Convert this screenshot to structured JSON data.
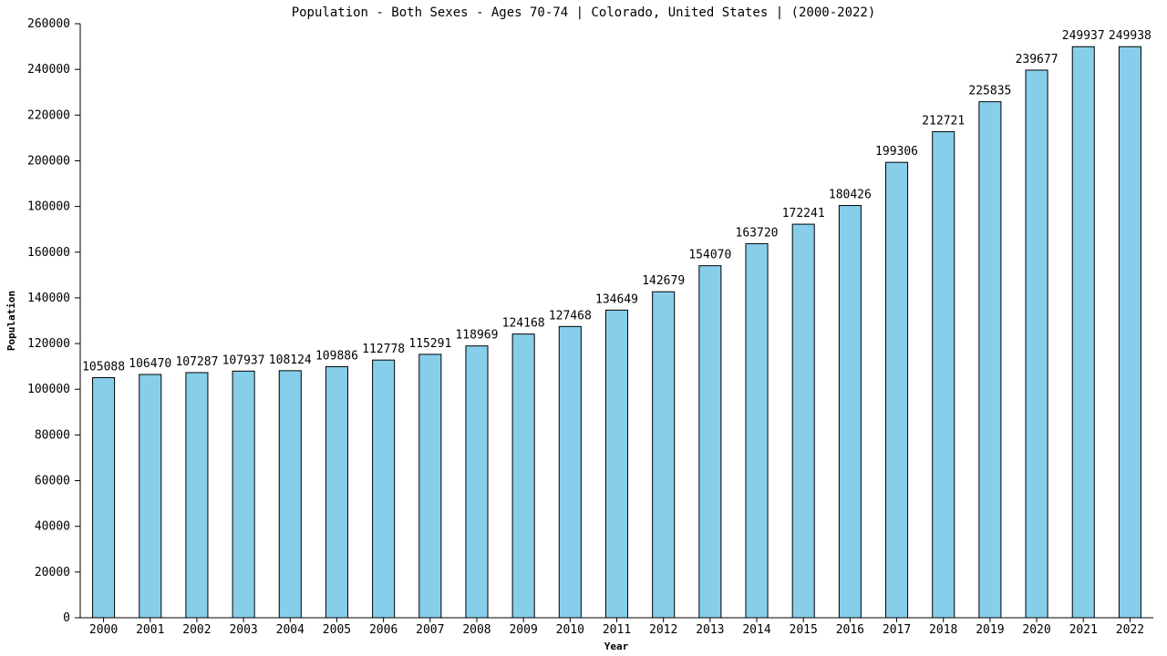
{
  "chart_data": {
    "type": "bar",
    "title": "Population - Both Sexes - Ages 70-74 | Colorado, United States |  (2000-2022)",
    "xlabel": "Year",
    "ylabel": "Population",
    "ylim": [
      0,
      260000
    ],
    "yticks": [
      0,
      20000,
      40000,
      60000,
      80000,
      100000,
      120000,
      140000,
      160000,
      180000,
      200000,
      220000,
      240000,
      260000
    ],
    "categories": [
      "2000",
      "2001",
      "2002",
      "2003",
      "2004",
      "2005",
      "2006",
      "2007",
      "2008",
      "2009",
      "2010",
      "2011",
      "2012",
      "2013",
      "2014",
      "2015",
      "2016",
      "2017",
      "2018",
      "2019",
      "2020",
      "2021",
      "2022"
    ],
    "values": [
      105088,
      106470,
      107287,
      107937,
      108124,
      109886,
      112778,
      115291,
      118969,
      124168,
      127468,
      134649,
      142679,
      154070,
      163720,
      172241,
      180426,
      199306,
      212721,
      225835,
      239677,
      249937,
      249938
    ],
    "bar_color": "#87ceeb",
    "grid": false,
    "legend": "none"
  }
}
